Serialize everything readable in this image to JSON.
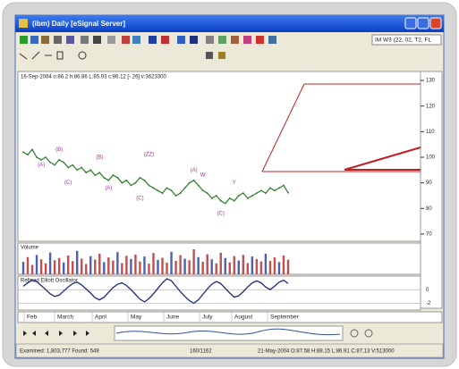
{
  "window": {
    "title": "(ibm) Daily [eSignal Server]",
    "toolbar_text": "IM W3 (22, 02, T2, FL"
  },
  "chart": {
    "type": "line",
    "header": "16-Sep-2004 o:86.2 h:86.86 L:85.93 c:86.12 [-.26] v:3623300",
    "price": {
      "ylim": [
        67.2,
        133.5
      ],
      "yticks": [
        130,
        120,
        110,
        100,
        90,
        80,
        70
      ],
      "color": "#2a7a2a",
      "closes": [
        102,
        101,
        103,
        100,
        99,
        100,
        98,
        97,
        99,
        98,
        96,
        97,
        95,
        96,
        94,
        95,
        93,
        94,
        92,
        91,
        93,
        92,
        90,
        91,
        89,
        90,
        92,
        91,
        89,
        88,
        87,
        86,
        88,
        87,
        85,
        86,
        88,
        90,
        91,
        89,
        87,
        86,
        84,
        85,
        83,
        82,
        84,
        83,
        85,
        86,
        84,
        85,
        86,
        87,
        86,
        88,
        87,
        88,
        89,
        86.12
      ]
    },
    "wave_labels": [
      {
        "text": "(A)",
        "index": 4,
        "value": 97
      },
      {
        "text": "(B)",
        "index": 8,
        "value": 103
      },
      {
        "text": "(C)",
        "index": 10,
        "value": 90
      },
      {
        "text": "(B)",
        "index": 17,
        "value": 100
      },
      {
        "text": "(A)",
        "index": 19,
        "value": 88
      },
      {
        "text": "(C)",
        "index": 26,
        "value": 84
      },
      {
        "text": "(ZZ)",
        "index": 28,
        "value": 101
      },
      {
        "text": "(A)",
        "index": 38,
        "value": 95
      },
      {
        "text": "W",
        "index": 40,
        "value": 93
      },
      {
        "text": "(C)",
        "index": 44,
        "value": 78
      },
      {
        "text": "Y",
        "index": 47,
        "value": 90
      }
    ],
    "volume": {
      "label": "Volume",
      "ylim": [
        0,
        100
      ],
      "values": [
        40,
        55,
        30,
        62,
        48,
        35,
        70,
        45,
        52,
        38,
        60,
        42,
        75,
        50,
        33,
        58,
        47,
        66,
        39,
        54,
        44,
        71,
        36,
        59,
        49,
        63,
        41,
        57,
        34,
        68,
        46,
        53,
        37,
        72,
        43,
        61,
        50,
        45,
        80,
        55,
        40,
        64,
        48,
        35,
        69,
        52,
        38,
        58,
        44,
        62,
        36,
        57,
        49,
        41,
        66,
        43,
        54,
        39,
        60,
        47
      ]
    },
    "oscillator": {
      "label": "Refined Elliott Oscillator",
      "ylim": [
        -3,
        2
      ],
      "yticks": [
        0,
        -2
      ],
      "color": "#1a2a7a",
      "values": [
        0.5,
        1,
        1.4,
        1.2,
        0.6,
        0,
        -0.6,
        -1,
        -0.8,
        -0.2,
        0.4,
        0.9,
        1.1,
        0.7,
        0.1,
        -0.5,
        -1.2,
        -1.5,
        -1.1,
        -0.4,
        0.3,
        0.8,
        1,
        0.6,
        0,
        -0.7,
        -1.4,
        -1.8,
        -1.3,
        -0.6,
        0.2,
        1,
        1.6,
        1.3,
        0.5,
        -0.3,
        -1,
        -1.6,
        -2,
        -1.5,
        -0.7,
        0.1,
        0.8,
        1.2,
        0.9,
        0.2,
        -0.5,
        -1.1,
        -0.9,
        -0.3,
        0.4,
        1,
        1.3,
        1,
        0.4,
        0,
        0.5,
        1.1,
        1.4,
        0.9
      ]
    },
    "months": [
      "Feb",
      "March",
      "April",
      "May",
      "June",
      "July",
      "August",
      "September"
    ]
  },
  "status": {
    "examined": "Examined: 1,803,777  Found: 549",
    "position": "160/1162",
    "bar": "21-May-2004 O:87.58 H:88.15 L:86.91 C:87.13 V:513000"
  }
}
